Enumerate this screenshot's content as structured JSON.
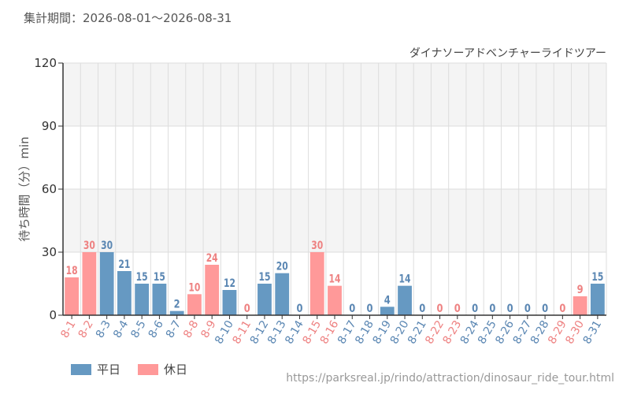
{
  "aggregation_period": "集計期間：2026-08-01～2026-08-31",
  "source_url": "https://parksreal.jp/rindo/attraction/dinosaur_ride_tour.html",
  "legend": [
    {
      "label": "平日",
      "color": "#6699c2"
    },
    {
      "label": "休日",
      "color": "#ff9999"
    }
  ],
  "chart_data": {
    "type": "bar",
    "title": "ダイナソーアドベンチャーライドツアー",
    "ylabel": "待ち時間（分）min",
    "xlabel": "",
    "ylim": [
      0,
      120
    ],
    "yticks": [
      0,
      30,
      60,
      90,
      120
    ],
    "grid": true,
    "legend_position": "bottom-left",
    "categories": [
      "8-1",
      "8-2",
      "8-3",
      "8-4",
      "8-5",
      "8-6",
      "8-7",
      "8-8",
      "8-9",
      "8-10",
      "8-11",
      "8-12",
      "8-13",
      "8-14",
      "8-15",
      "8-16",
      "8-17",
      "8-18",
      "8-19",
      "8-20",
      "8-21",
      "8-22",
      "8-23",
      "8-24",
      "8-25",
      "8-26",
      "8-27",
      "8-28",
      "8-29",
      "8-30",
      "8-31"
    ],
    "values": [
      18,
      30,
      30,
      21,
      15,
      15,
      2,
      10,
      24,
      12,
      0,
      15,
      20,
      0,
      30,
      14,
      0,
      0,
      4,
      14,
      0,
      0,
      0,
      0,
      0,
      0,
      0,
      0,
      0,
      9,
      15
    ],
    "day_types": [
      "休日",
      "休日",
      "平日",
      "平日",
      "平日",
      "平日",
      "平日",
      "休日",
      "休日",
      "平日",
      "休日",
      "平日",
      "平日",
      "平日",
      "休日",
      "休日",
      "平日",
      "平日",
      "平日",
      "平日",
      "平日",
      "休日",
      "休日",
      "平日",
      "平日",
      "平日",
      "平日",
      "平日",
      "休日",
      "休日",
      "平日"
    ],
    "colors": {
      "平日": "#6699c2",
      "休日": "#ff9999",
      "平日_text": "#5b87b3",
      "休日_text": "#ee8282",
      "axis": "#333333",
      "grid": "#dddddd",
      "band": "#f4f4f4"
    }
  }
}
